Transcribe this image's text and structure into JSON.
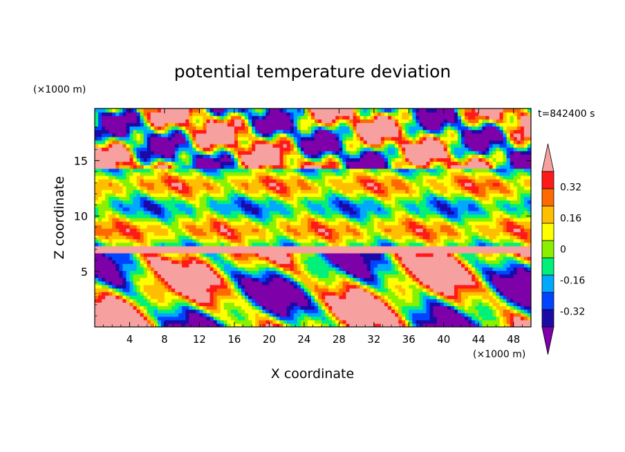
{
  "chart_data": {
    "type": "heatmap",
    "title": "potential temperature deviation",
    "xlabel": "X coordinate",
    "ylabel": "Z coordinate",
    "x_unit": "(×1000 m)",
    "y_unit": "(×1000 m)",
    "time_label": "t=842400 s",
    "xlim": [
      0,
      50
    ],
    "ylim": [
      0,
      19.7
    ],
    "x_ticks": [
      4,
      8,
      12,
      16,
      20,
      24,
      28,
      32,
      36,
      40,
      44,
      48
    ],
    "y_ticks": [
      5,
      10,
      15
    ],
    "colorbar": {
      "levels": [
        -0.4,
        -0.32,
        -0.24,
        -0.16,
        -0.08,
        0,
        0.08,
        0.16,
        0.24,
        0.32,
        0.4
      ],
      "tick_labels": [
        "-0.32",
        "-0.16",
        "0",
        "0.16",
        "0.32"
      ],
      "tick_values": [
        -0.32,
        -0.16,
        0,
        0.16,
        0.32
      ],
      "colors": [
        "#7e00a8",
        "#1c0aa6",
        "#0044ff",
        "#00a9ff",
        "#00f07a",
        "#8bf000",
        "#ffff00",
        "#ffbf00",
        "#ff6a00",
        "#ff1a1a",
        "#f7a0a0"
      ],
      "extend": "both"
    },
    "grid": false
  }
}
